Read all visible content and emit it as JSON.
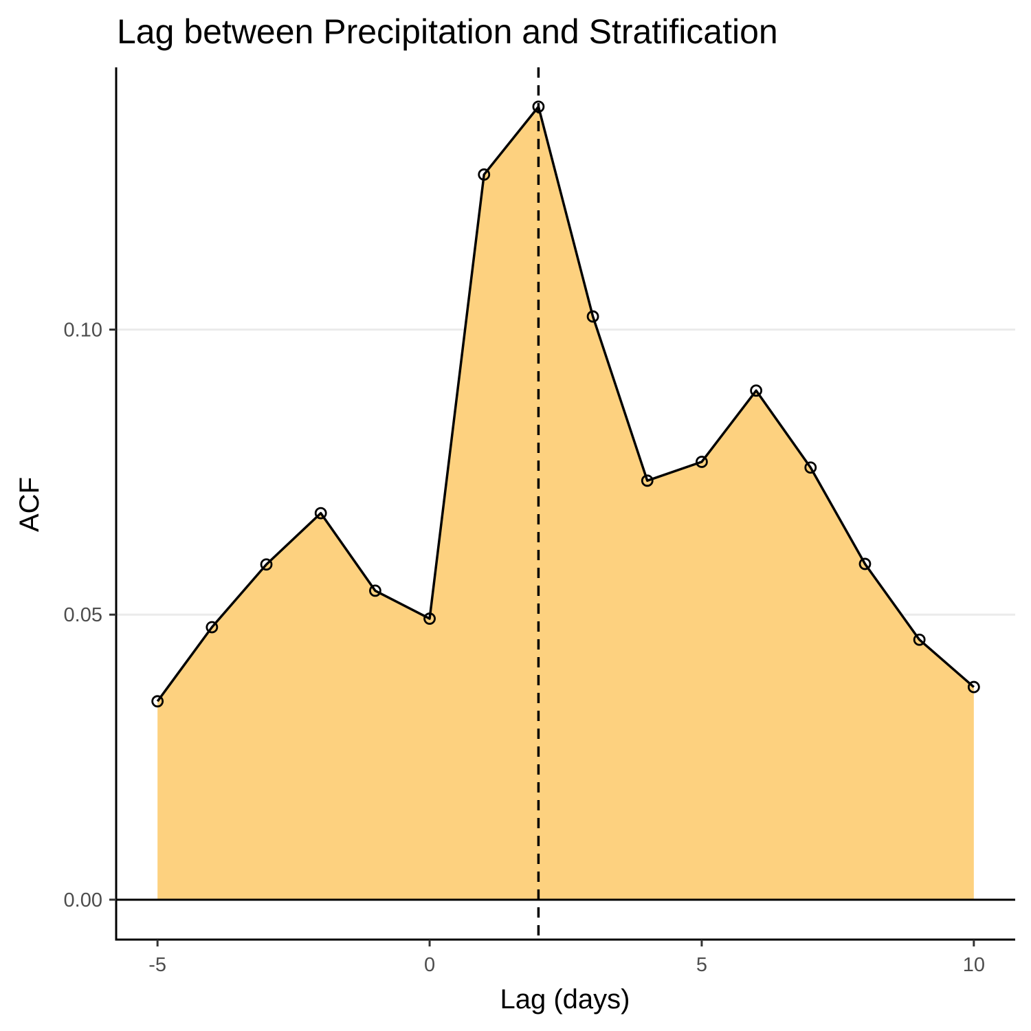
{
  "chart_data": {
    "type": "area",
    "title": "Lag between Precipitation and Stratification",
    "xlabel": "Lag (days)",
    "ylabel": "ACF",
    "x": [
      -5,
      -4,
      -3,
      -2,
      -1,
      0,
      1,
      2,
      3,
      4,
      5,
      6,
      7,
      8,
      9,
      10
    ],
    "values": [
      0.0348,
      0.0478,
      0.0588,
      0.0678,
      0.0542,
      0.0493,
      0.1272,
      0.1391,
      0.1023,
      0.0735,
      0.0768,
      0.0893,
      0.0758,
      0.0589,
      0.0456,
      0.0373
    ],
    "xlim": [
      -5.76,
      10.76
    ],
    "ylim": [
      -0.007,
      0.146
    ],
    "x_ticks": [
      -5,
      0,
      5,
      10
    ],
    "x_tick_labels": [
      "-5",
      "0",
      "5",
      "10"
    ],
    "y_ticks": [
      0,
      0.05,
      0.1
    ],
    "y_tick_labels": [
      "0.00",
      "0.05",
      "0.10"
    ],
    "reference_vline_x": 2,
    "reference_hline_y": 0,
    "grid": "horizontal major",
    "fill_color": "#fdd17f",
    "line_color": "#000000",
    "gridline_color": "#ebebeb"
  }
}
